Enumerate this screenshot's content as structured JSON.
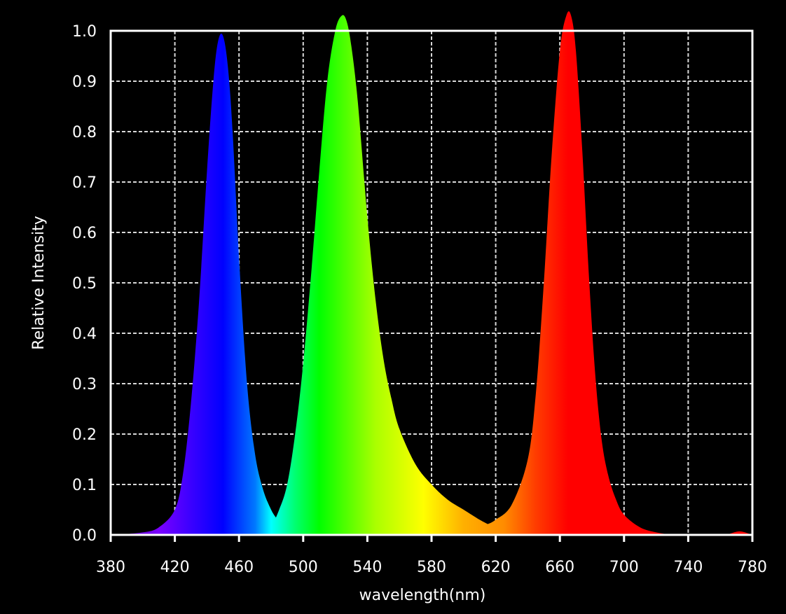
{
  "chart_data": {
    "type": "area",
    "xlabel": "wavelength(nm)",
    "ylabel": "Relative Intensity",
    "xlim": [
      380,
      780
    ],
    "ylim": [
      0,
      1.0
    ],
    "x_ticks": [
      380,
      420,
      460,
      500,
      540,
      580,
      620,
      660,
      700,
      740,
      780
    ],
    "x_tick_labels": [
      "380",
      "420",
      "460",
      "500",
      "540",
      "580",
      "620",
      "660",
      "700",
      "740",
      "780"
    ],
    "y_ticks": [
      0,
      0.1,
      0.2,
      0.3,
      0.4,
      0.5,
      0.6,
      0.7,
      0.8,
      0.9,
      1.0
    ],
    "y_tick_labels": [
      "0.0",
      "0.1",
      "0.2",
      "0.3",
      "0.4",
      "0.5",
      "0.6",
      "0.7",
      "0.8",
      "0.9",
      "1.0"
    ],
    "grid": true,
    "series": [
      {
        "color_fill": "spectrum",
        "x": [
          382,
          400,
          410,
          420,
          425,
          430,
          435,
          440,
          444,
          447,
          450,
          453,
          456,
          460,
          465,
          470,
          475,
          480,
          484
        ],
        "y": [
          0.0,
          0.005,
          0.015,
          0.05,
          0.12,
          0.26,
          0.46,
          0.72,
          0.9,
          0.98,
          0.99,
          0.93,
          0.8,
          0.55,
          0.3,
          0.16,
          0.09,
          0.05,
          0.03
        ]
      },
      {
        "color_fill": "spectrum",
        "x": [
          470,
          480,
          485,
          490,
          495,
          500,
          505,
          510,
          515,
          520,
          524,
          527,
          530,
          534,
          540,
          545,
          550,
          555,
          560,
          570,
          580,
          590,
          600,
          610,
          616
        ],
        "y": [
          0.0,
          0.02,
          0.05,
          0.1,
          0.2,
          0.34,
          0.52,
          0.72,
          0.9,
          1.0,
          1.03,
          1.02,
          0.97,
          0.86,
          0.63,
          0.47,
          0.35,
          0.27,
          0.21,
          0.14,
          0.1,
          0.07,
          0.05,
          0.03,
          0.02
        ]
      },
      {
        "color_fill": "spectrum",
        "x": [
          614,
          620,
          630,
          640,
          645,
          650,
          655,
          660,
          664,
          667,
          670,
          674,
          678,
          682,
          686,
          690,
          695,
          700,
          710,
          720,
          730
        ],
        "y": [
          0.02,
          0.03,
          0.06,
          0.15,
          0.28,
          0.5,
          0.76,
          0.96,
          1.03,
          1.03,
          0.96,
          0.76,
          0.52,
          0.32,
          0.19,
          0.12,
          0.07,
          0.04,
          0.015,
          0.005,
          0.0
        ]
      },
      {
        "color_fill": "spectrum",
        "x": [
          764,
          772,
          780
        ],
        "y": [
          0.0,
          0.007,
          0.0
        ]
      }
    ]
  }
}
